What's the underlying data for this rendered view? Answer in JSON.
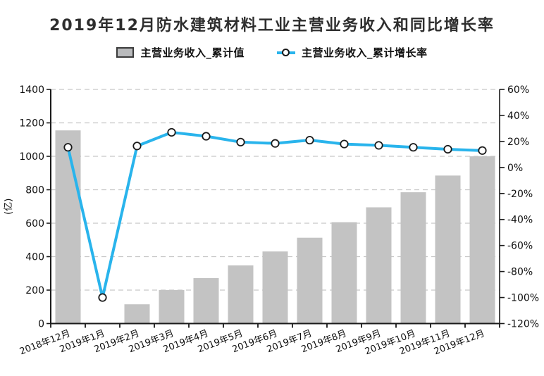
{
  "page": {
    "background": "#ffffff"
  },
  "chart": {
    "title": "2019年12月防水建筑材料工业主营业务收入和同比增长率"
  },
  "chart_data": {
    "type": "combo-bar-line",
    "title": "2019年12月防水建筑材料工业主营业务收入和同比增长率",
    "categories": [
      "2018年12月",
      "2019年1月",
      "2019年2月",
      "2019年3月",
      "2019年4月",
      "2019年5月",
      "2019年6月",
      "2019年7月",
      "2019年8月",
      "2019年9月",
      "2019年10月",
      "2019年11月",
      "2019年12月"
    ],
    "series": [
      {
        "name": "主营业务收入_累计值",
        "type": "bar",
        "axis": "left",
        "color": "#c3c3c3",
        "values": [
          1155,
          null,
          115,
          200,
          272,
          348,
          431,
          513,
          606,
          695,
          785,
          885,
          1000
        ]
      },
      {
        "name": "主营业务收入_累计增长率",
        "type": "line",
        "axis": "right",
        "color": "#29b4ec",
        "marker": "circle-white-black-ring",
        "values": [
          15.5,
          -100,
          16.5,
          27,
          24,
          19.5,
          18.5,
          21,
          18,
          17,
          15.5,
          14,
          13
        ]
      }
    ],
    "left_axis": {
      "title": "(亿)",
      "min": 0,
      "max": 1400,
      "step": 200
    },
    "right_axis": {
      "min": -120,
      "max": 60,
      "step": 20,
      "suffix": "%"
    },
    "grid": {
      "horizontal": "dashed",
      "aligned_to": "left-axis-ticks"
    },
    "legend_position": "top",
    "x_label_rotation_deg": -21,
    "colors": {
      "grid": "#c6c6c6",
      "axis": "#1a1a1a",
      "marker_fill": "#ffffff",
      "marker_stroke": "#1a1a1a"
    }
  }
}
